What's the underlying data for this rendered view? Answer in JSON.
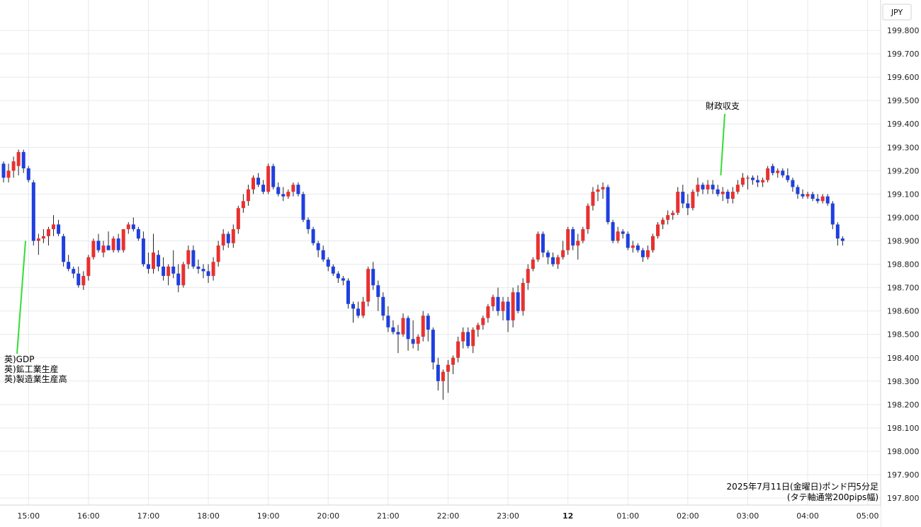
{
  "chart_data": {
    "type": "candlestick",
    "currency_label": "JPY",
    "caption_line1": "2025年7月11日(金曜日)ポンド円5分足",
    "caption_line2": "(タテ軸通常200pips幅)",
    "ylim": [
      197.77,
      199.93
    ],
    "y_ticks": [
      "199.800",
      "199.700",
      "199.600",
      "199.500",
      "199.400",
      "199.300",
      "199.200",
      "199.100",
      "199.000",
      "198.900",
      "198.800",
      "198.700",
      "198.600",
      "198.500",
      "198.400",
      "198.300",
      "198.200",
      "198.100",
      "198.000",
      "197.900",
      "197.800"
    ],
    "x_ticks": [
      {
        "label": "15:00",
        "bold": false
      },
      {
        "label": "16:00",
        "bold": false
      },
      {
        "label": "17:00",
        "bold": false
      },
      {
        "label": "18:00",
        "bold": false
      },
      {
        "label": "19:00",
        "bold": false
      },
      {
        "label": "20:00",
        "bold": false
      },
      {
        "label": "21:00",
        "bold": false
      },
      {
        "label": "22:00",
        "bold": false
      },
      {
        "label": "23:00",
        "bold": false
      },
      {
        "label": "12",
        "bold": true
      },
      {
        "label": "01:00",
        "bold": false
      },
      {
        "label": "02:00",
        "bold": false
      },
      {
        "label": "03:00",
        "bold": false
      },
      {
        "label": "04:00",
        "bold": false
      },
      {
        "label": "05:00",
        "bold": false
      }
    ],
    "colors": {
      "up": "#e8312f",
      "down": "#1f3fe0",
      "annotation_line": "#33dd33",
      "grid": "#e6e9ee"
    },
    "annotations": [
      {
        "lines": [
          "英)GDP",
          "英)鉱工業生産",
          "英)製造業生産高"
        ],
        "time_index": 4.4,
        "price": 198.9
      },
      {
        "lines": [
          "財政収支"
        ],
        "time_index": 143.6,
        "price": 199.18
      }
    ],
    "candles": [
      [
        199.23,
        199.24,
        199.15,
        199.17
      ],
      [
        199.17,
        199.23,
        199.15,
        199.2
      ],
      [
        199.2,
        199.26,
        199.17,
        199.24
      ],
      [
        199.22,
        199.29,
        199.18,
        199.28
      ],
      [
        199.28,
        199.29,
        199.19,
        199.21
      ],
      [
        199.21,
        199.22,
        199.15,
        199.16
      ],
      [
        199.15,
        199.16,
        198.88,
        198.9
      ],
      [
        198.9,
        198.93,
        198.84,
        198.91
      ],
      [
        198.91,
        198.95,
        198.89,
        198.92
      ],
      [
        198.92,
        198.96,
        198.88,
        198.95
      ],
      [
        198.95,
        199.01,
        198.92,
        198.97
      ],
      [
        198.97,
        198.99,
        198.92,
        198.93
      ],
      [
        198.92,
        198.93,
        198.79,
        198.81
      ],
      [
        198.81,
        198.84,
        198.77,
        198.78
      ],
      [
        198.78,
        198.79,
        198.74,
        198.76
      ],
      [
        198.76,
        198.79,
        198.7,
        198.71
      ],
      [
        198.71,
        198.77,
        198.69,
        198.75
      ],
      [
        198.75,
        198.84,
        198.73,
        198.83
      ],
      [
        198.83,
        198.91,
        198.82,
        198.9
      ],
      [
        198.9,
        198.93,
        198.85,
        198.86
      ],
      [
        198.85,
        198.9,
        198.83,
        198.88
      ],
      [
        198.88,
        198.94,
        198.86,
        198.86
      ],
      [
        198.86,
        198.92,
        198.85,
        198.91
      ],
      [
        198.91,
        198.93,
        198.85,
        198.86
      ],
      [
        198.86,
        198.95,
        198.85,
        198.95
      ],
      [
        198.95,
        198.98,
        198.93,
        198.97
      ],
      [
        198.97,
        199.0,
        198.94,
        198.95
      ],
      [
        198.95,
        198.96,
        198.9,
        198.91
      ],
      [
        198.91,
        198.94,
        198.79,
        198.8
      ],
      [
        198.8,
        198.85,
        198.76,
        198.78
      ],
      [
        198.78,
        198.93,
        198.76,
        198.85
      ],
      [
        198.84,
        198.86,
        198.77,
        198.79
      ],
      [
        198.79,
        198.83,
        198.73,
        198.75
      ],
      [
        198.75,
        198.8,
        198.71,
        198.79
      ],
      [
        198.79,
        198.86,
        198.74,
        198.76
      ],
      [
        198.76,
        198.8,
        198.68,
        198.71
      ],
      [
        198.71,
        198.81,
        198.7,
        198.8
      ],
      [
        198.8,
        198.88,
        198.78,
        198.86
      ],
      [
        198.86,
        198.88,
        198.78,
        198.79
      ],
      [
        198.79,
        198.82,
        198.76,
        198.78
      ],
      [
        198.78,
        198.8,
        198.74,
        198.77
      ],
      [
        198.77,
        198.8,
        198.72,
        198.75
      ],
      [
        198.75,
        198.83,
        198.73,
        198.81
      ],
      [
        198.81,
        198.9,
        198.79,
        198.88
      ],
      [
        198.88,
        198.95,
        198.86,
        198.93
      ],
      [
        198.93,
        198.94,
        198.87,
        198.89
      ],
      [
        198.89,
        198.97,
        198.87,
        198.95
      ],
      [
        198.95,
        199.05,
        198.93,
        199.04
      ],
      [
        199.04,
        199.1,
        199.02,
        199.07
      ],
      [
        199.07,
        199.14,
        199.05,
        199.12
      ],
      [
        199.12,
        199.18,
        199.1,
        199.17
      ],
      [
        199.17,
        199.19,
        199.13,
        199.14
      ],
      [
        199.14,
        199.16,
        199.1,
        199.11
      ],
      [
        199.11,
        199.23,
        199.1,
        199.22
      ],
      [
        199.22,
        199.23,
        199.12,
        199.13
      ],
      [
        199.13,
        199.15,
        199.09,
        199.1
      ],
      [
        199.1,
        199.13,
        199.07,
        199.09
      ],
      [
        199.09,
        199.12,
        199.08,
        199.11
      ],
      [
        199.11,
        199.15,
        199.09,
        199.14
      ],
      [
        199.14,
        199.15,
        199.09,
        199.1
      ],
      [
        199.1,
        199.11,
        198.98,
        198.99
      ],
      [
        198.99,
        199.0,
        198.93,
        198.95
      ],
      [
        198.95,
        198.96,
        198.88,
        198.89
      ],
      [
        198.89,
        198.9,
        198.83,
        198.86
      ],
      [
        198.86,
        198.88,
        198.81,
        198.82
      ],
      [
        198.82,
        198.83,
        198.77,
        198.79
      ],
      [
        198.79,
        198.8,
        198.75,
        198.76
      ],
      [
        198.76,
        198.77,
        198.72,
        198.74
      ],
      [
        198.74,
        198.75,
        198.71,
        198.73
      ],
      [
        198.73,
        198.74,
        198.61,
        198.63
      ],
      [
        198.63,
        198.64,
        198.55,
        198.61
      ],
      [
        198.61,
        198.64,
        198.57,
        198.58
      ],
      [
        198.58,
        198.66,
        198.57,
        198.64
      ],
      [
        198.64,
        198.79,
        198.62,
        198.78
      ],
      [
        198.78,
        198.81,
        198.69,
        198.71
      ],
      [
        198.71,
        198.73,
        198.6,
        198.66
      ],
      [
        198.66,
        198.68,
        198.56,
        198.58
      ],
      [
        198.58,
        198.62,
        198.51,
        198.53
      ],
      [
        198.53,
        198.56,
        198.5,
        198.51
      ],
      [
        198.51,
        198.54,
        198.42,
        198.5
      ],
      [
        198.5,
        198.59,
        198.49,
        198.57
      ],
      [
        198.57,
        198.58,
        198.43,
        198.48
      ],
      [
        198.48,
        198.56,
        198.44,
        198.46
      ],
      [
        198.46,
        198.5,
        198.43,
        198.49
      ],
      [
        198.49,
        198.6,
        198.47,
        198.58
      ],
      [
        198.58,
        198.59,
        198.47,
        198.52
      ],
      [
        198.52,
        198.53,
        198.35,
        198.38
      ],
      [
        198.37,
        198.4,
        198.26,
        198.3
      ],
      [
        198.3,
        198.35,
        198.22,
        198.34
      ],
      [
        198.34,
        198.39,
        198.25,
        198.37
      ],
      [
        198.37,
        198.41,
        198.33,
        198.4
      ],
      [
        198.4,
        198.49,
        198.38,
        198.47
      ],
      [
        198.47,
        198.53,
        198.44,
        198.51
      ],
      [
        198.51,
        198.53,
        198.44,
        198.45
      ],
      [
        198.45,
        198.53,
        198.42,
        198.52
      ],
      [
        198.52,
        198.55,
        198.49,
        198.54
      ],
      [
        198.54,
        198.58,
        198.52,
        198.57
      ],
      [
        198.57,
        198.63,
        198.55,
        198.62
      ],
      [
        198.62,
        198.67,
        198.6,
        198.66
      ],
      [
        198.66,
        198.7,
        198.58,
        198.6
      ],
      [
        198.6,
        198.66,
        198.56,
        198.64
      ],
      [
        198.64,
        198.66,
        198.51,
        198.56
      ],
      [
        198.56,
        198.7,
        198.53,
        198.68
      ],
      [
        198.68,
        198.71,
        198.59,
        198.6
      ],
      [
        198.6,
        198.74,
        198.58,
        198.72
      ],
      [
        198.72,
        198.8,
        198.69,
        198.78
      ],
      [
        198.78,
        198.83,
        198.77,
        198.82
      ],
      [
        198.82,
        198.94,
        198.81,
        198.93
      ],
      [
        198.93,
        198.94,
        198.83,
        198.85
      ],
      [
        198.85,
        198.86,
        198.8,
        198.83
      ],
      [
        198.83,
        198.85,
        198.79,
        198.8
      ],
      [
        198.8,
        198.84,
        198.78,
        198.83
      ],
      [
        198.83,
        198.9,
        198.82,
        198.86
      ],
      [
        198.86,
        198.96,
        198.84,
        198.95
      ],
      [
        198.95,
        198.96,
        198.86,
        198.88
      ],
      [
        198.88,
        198.93,
        198.82,
        198.9
      ],
      [
        198.9,
        198.96,
        198.89,
        198.95
      ],
      [
        198.95,
        199.06,
        198.93,
        199.05
      ],
      [
        199.05,
        199.13,
        199.03,
        199.11
      ],
      [
        199.11,
        199.14,
        199.07,
        199.12
      ],
      [
        199.12,
        199.15,
        199.08,
        199.13
      ],
      [
        199.13,
        199.14,
        198.97,
        198.98
      ],
      [
        198.98,
        198.99,
        198.89,
        198.9
      ],
      [
        198.9,
        198.96,
        198.89,
        198.94
      ],
      [
        198.94,
        198.95,
        198.91,
        198.93
      ],
      [
        198.93,
        198.94,
        198.86,
        198.87
      ],
      [
        198.87,
        198.9,
        198.85,
        198.88
      ],
      [
        198.88,
        198.89,
        198.85,
        198.86
      ],
      [
        198.86,
        198.87,
        198.81,
        198.83
      ],
      [
        198.83,
        198.88,
        198.82,
        198.86
      ],
      [
        198.86,
        198.93,
        198.85,
        198.92
      ],
      [
        198.92,
        198.98,
        198.91,
        198.97
      ],
      [
        198.97,
        199.0,
        198.95,
        198.99
      ],
      [
        198.99,
        199.03,
        198.97,
        199.01
      ],
      [
        199.01,
        199.03,
        198.99,
        199.02
      ],
      [
        199.02,
        199.13,
        199.01,
        199.11
      ],
      [
        199.11,
        199.14,
        199.04,
        199.06
      ],
      [
        199.06,
        199.1,
        199.01,
        199.04
      ],
      [
        199.04,
        199.12,
        199.03,
        199.11
      ],
      [
        199.11,
        199.17,
        199.09,
        199.14
      ],
      [
        199.14,
        199.15,
        199.1,
        199.12
      ],
      [
        199.12,
        199.16,
        199.1,
        199.14
      ],
      [
        199.14,
        199.16,
        199.1,
        199.12
      ],
      [
        199.12,
        199.14,
        199.09,
        199.1
      ],
      [
        199.1,
        199.13,
        199.07,
        199.11
      ],
      [
        199.11,
        199.12,
        199.06,
        199.08
      ],
      [
        199.08,
        199.13,
        199.06,
        199.11
      ],
      [
        199.11,
        199.16,
        199.1,
        199.14
      ],
      [
        199.14,
        199.19,
        199.13,
        199.17
      ],
      [
        199.17,
        199.18,
        199.12,
        199.17
      ],
      [
        199.17,
        199.18,
        199.14,
        199.16
      ],
      [
        199.16,
        199.18,
        199.13,
        199.15
      ],
      [
        199.15,
        199.17,
        199.13,
        199.16
      ],
      [
        199.16,
        199.22,
        199.15,
        199.21
      ],
      [
        199.22,
        199.23,
        199.18,
        199.19
      ],
      [
        199.19,
        199.21,
        199.17,
        199.2
      ],
      [
        199.2,
        199.21,
        199.17,
        199.18
      ],
      [
        199.18,
        199.21,
        199.15,
        199.16
      ],
      [
        199.16,
        199.17,
        199.11,
        199.13
      ],
      [
        199.13,
        199.14,
        199.08,
        199.1
      ],
      [
        199.1,
        199.12,
        199.08,
        199.09
      ],
      [
        199.09,
        199.11,
        199.08,
        199.1
      ],
      [
        199.1,
        199.11,
        199.07,
        199.08
      ],
      [
        199.08,
        199.1,
        199.06,
        199.07
      ],
      [
        199.07,
        199.1,
        199.06,
        199.09
      ],
      [
        199.09,
        199.1,
        199.05,
        199.06
      ],
      [
        199.06,
        199.07,
        198.95,
        198.97
      ],
      [
        198.97,
        198.98,
        198.88,
        198.91
      ],
      [
        198.91,
        198.92,
        198.88,
        198.9
      ]
    ]
  }
}
